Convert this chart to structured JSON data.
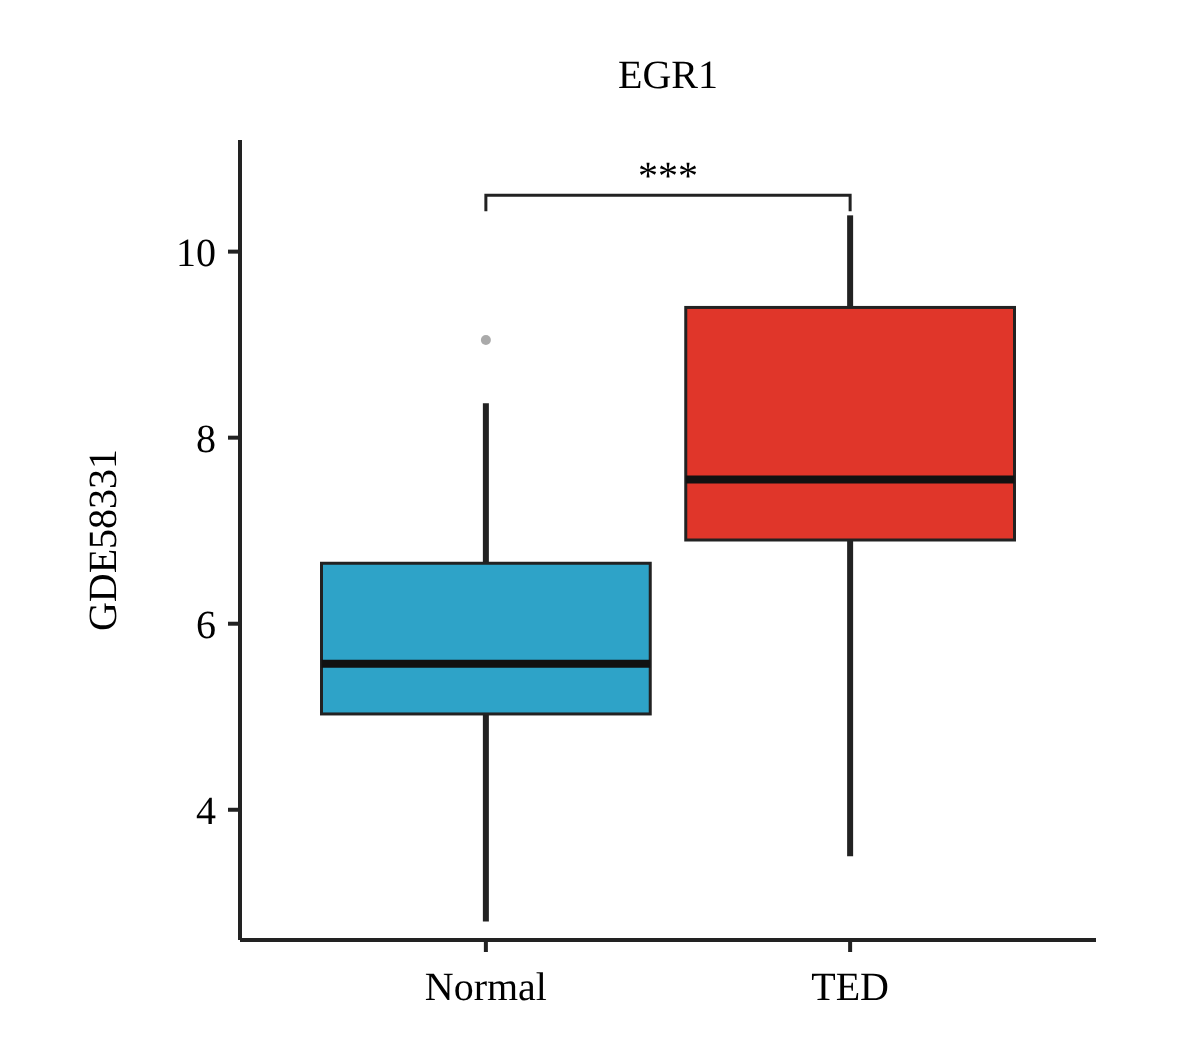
{
  "chart_data": {
    "type": "box",
    "title": "EGR1",
    "ylabel": "GDE58331",
    "categories": [
      "Normal",
      "TED"
    ],
    "colors": [
      "#2ea3c8",
      "#e0362a"
    ],
    "boxes": [
      {
        "low": 2.8,
        "q1": 5.03,
        "median": 5.57,
        "q3": 6.65,
        "high": 8.37,
        "outliers": [
          9.05
        ]
      },
      {
        "low": 3.5,
        "q1": 6.9,
        "median": 7.55,
        "q3": 9.4,
        "high": 10.39
      }
    ],
    "ylim": [
      2.6,
      11.2
    ],
    "yticks": [
      4,
      6,
      8,
      10
    ],
    "grid": false,
    "annotations": [
      "***"
    ]
  }
}
